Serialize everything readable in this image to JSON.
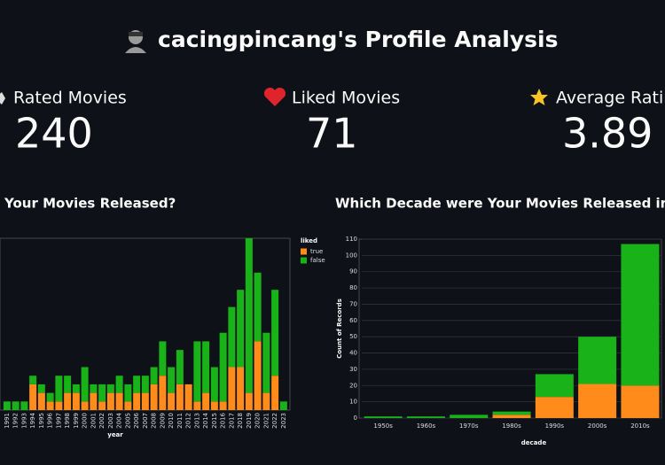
{
  "header": {
    "title": "cacingpincang's Profile Analysis"
  },
  "metrics": [
    {
      "label": "Rated Movies",
      "value": 240
    },
    {
      "label": "Liked Movies",
      "value": 71
    },
    {
      "label": "Average Ratin",
      "value": 3.89
    }
  ],
  "chart_data": [
    {
      "type": "bar",
      "stacked": true,
      "title": "Your Movies Released?",
      "x_label": "year",
      "legend": "right",
      "legend_title": "liked",
      "categories": [
        "1991",
        "1992",
        "1993",
        "1994",
        "1995",
        "1996",
        "1997",
        "1998",
        "1999",
        "2000",
        "2001",
        "2002",
        "2003",
        "2004",
        "2005",
        "2006",
        "2007",
        "2008",
        "2009",
        "2010",
        "2011",
        "2012",
        "2013",
        "2014",
        "2015",
        "2016",
        "2017",
        "2018",
        "2019",
        "2020",
        "2021",
        "2022",
        "2023"
      ],
      "ylim": [
        0,
        20
      ],
      "series": [
        {
          "name": "true",
          "color": "#ff8c1a",
          "values": [
            0,
            0,
            0,
            3,
            2,
            1,
            1,
            2,
            2,
            1,
            2,
            1,
            2,
            2,
            1,
            2,
            2,
            3,
            4,
            2,
            3,
            3,
            1,
            2,
            1,
            1,
            5,
            5,
            2,
            8,
            2,
            4,
            0
          ]
        },
        {
          "name": "false",
          "color": "#19b219",
          "values": [
            1,
            1,
            1,
            1,
            1,
            1,
            3,
            2,
            1,
            4,
            1,
            2,
            1,
            2,
            2,
            2,
            2,
            2,
            4,
            3,
            4,
            0,
            7,
            6,
            4,
            8,
            7,
            9,
            18,
            8,
            7,
            10,
            1
          ]
        }
      ]
    },
    {
      "type": "bar",
      "stacked": true,
      "title": "Which Decade were Your Movies Released in?",
      "x_label": "decade",
      "y_label": "Count of Records",
      "categories": [
        "1950s",
        "1960s",
        "1970s",
        "1980s",
        "1990s",
        "2000s",
        "2010s"
      ],
      "ylim": [
        0,
        110
      ],
      "yticks": [
        0,
        10,
        20,
        30,
        40,
        50,
        60,
        70,
        80,
        90,
        100,
        110
      ],
      "grid": true,
      "series": [
        {
          "name": "true",
          "color": "#ff8c1a",
          "values": [
            0,
            0,
            0,
            2,
            13,
            21,
            20
          ]
        },
        {
          "name": "false",
          "color": "#19b219",
          "values": [
            1,
            1,
            2,
            2,
            14,
            29,
            87
          ]
        }
      ]
    }
  ]
}
